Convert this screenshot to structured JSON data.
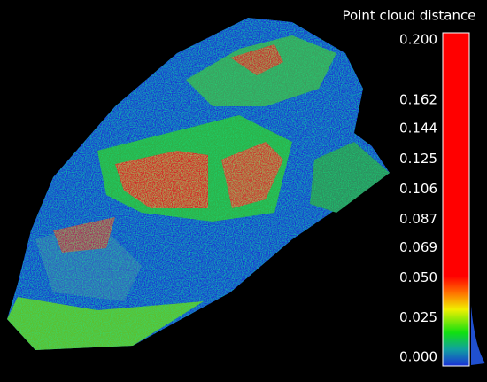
{
  "chart_data": {
    "type": "colorscale",
    "title": "Point cloud distance",
    "ylim": [
      0,
      0.2
    ],
    "yticks": [
      {
        "value": 0.2,
        "label": "0.200"
      },
      {
        "value": 0.162,
        "label": "0.162"
      },
      {
        "value": 0.144,
        "label": "0.144"
      },
      {
        "value": 0.125,
        "label": "0.125"
      },
      {
        "value": 0.106,
        "label": "0.106"
      },
      {
        "value": 0.087,
        "label": "0.087"
      },
      {
        "value": 0.069,
        "label": "0.069"
      },
      {
        "value": 0.05,
        "label": "0.050"
      },
      {
        "value": 0.025,
        "label": "0.025"
      },
      {
        "value": 0,
        "label": "0.000"
      }
    ]
  }
}
